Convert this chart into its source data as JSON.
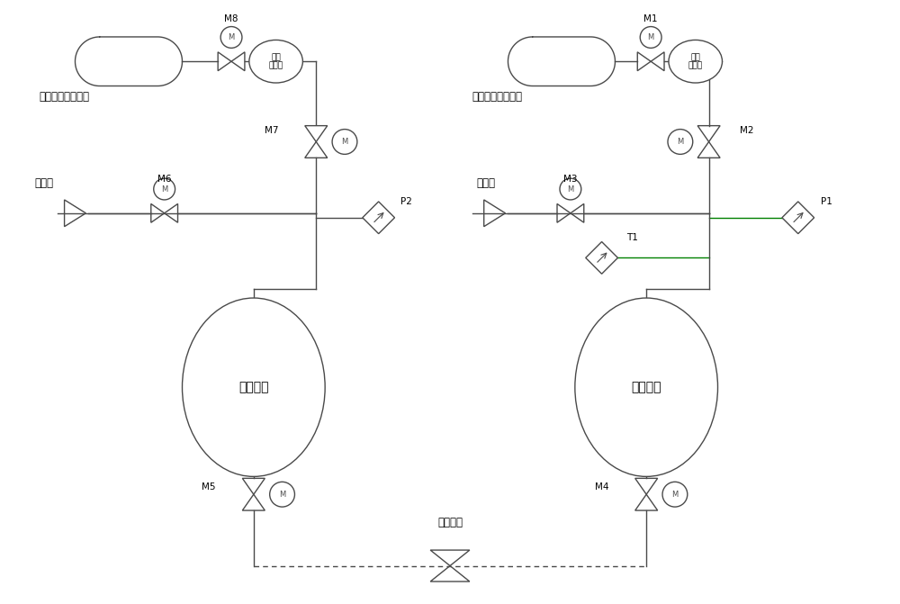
{
  "bg_color": "#ffffff",
  "line_color": "#4a4a4a",
  "green_line_color": "#008000",
  "text_color": "#000000",
  "title_left": "加注贮箱气源系统",
  "title_right": "目标贮箱气源系统",
  "label_safety": "安全阀",
  "label_exhaust": "排气阀",
  "label_inject_tank": "加注贮箱",
  "label_target_tank": "目标贮箱",
  "label_docking": "对接接口",
  "reducer_left_line1": "第二",
  "reducer_left_line2": "减压器",
  "reducer_right_line1": "第一",
  "reducer_right_line2": "减压器"
}
